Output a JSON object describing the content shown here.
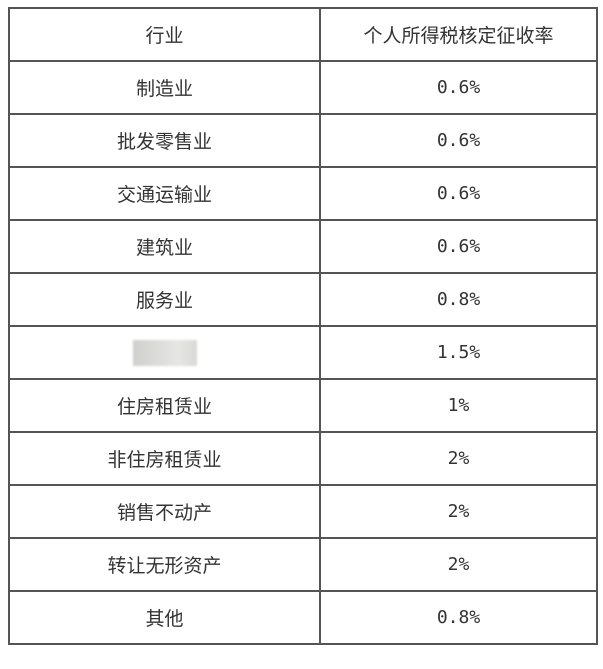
{
  "table": {
    "headers": [
      "行业",
      "个人所得税核定征收率"
    ],
    "rows": [
      {
        "industry": "制造业",
        "rate": "0.6%"
      },
      {
        "industry": "批发零售业",
        "rate": "0.6%"
      },
      {
        "industry": "交通运输业",
        "rate": "0.6%"
      },
      {
        "industry": "建筑业",
        "rate": "0.6%"
      },
      {
        "industry": "服务业",
        "rate": "0.8%"
      },
      {
        "industry": "",
        "rate": "1.5%",
        "redacted": true
      },
      {
        "industry": "住房租赁业",
        "rate": "1%"
      },
      {
        "industry": "非住房租赁业",
        "rate": "2%"
      },
      {
        "industry": "销售不动产",
        "rate": "2%"
      },
      {
        "industry": "转让无形资产",
        "rate": "2%"
      },
      {
        "industry": "其他",
        "rate": "0.8%"
      }
    ]
  }
}
